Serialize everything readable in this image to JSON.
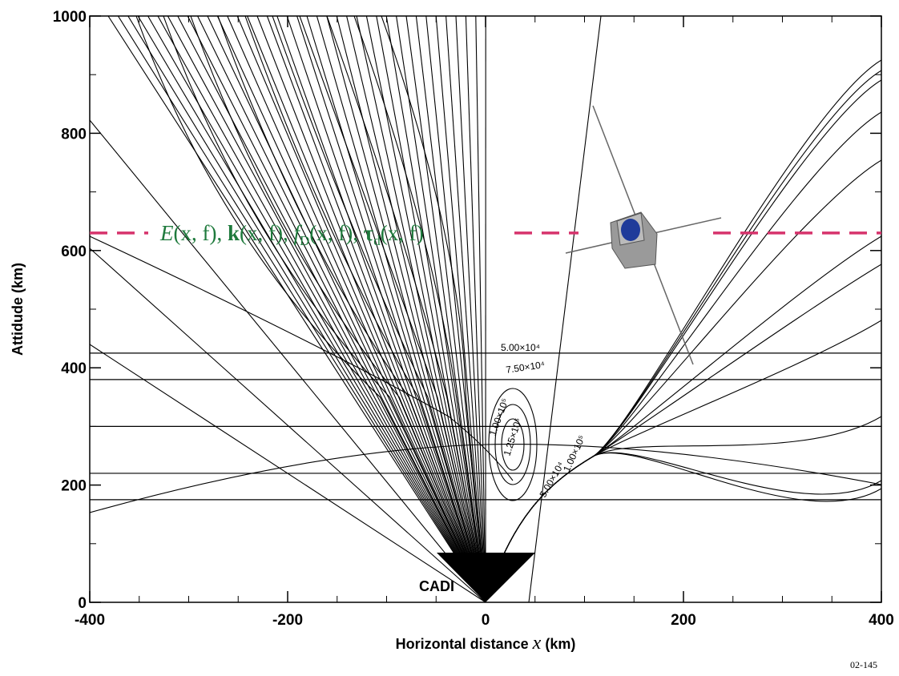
{
  "chart_data": {
    "type": "ray-trace",
    "y_label": "Attidude (km)",
    "x_label": [
      "Horizontal distance",
      "x",
      "(km)"
    ],
    "xlim": [
      -400,
      400
    ],
    "ylim": [
      0,
      1000
    ],
    "xticks": [
      -400,
      -200,
      0,
      200,
      400
    ],
    "yticks": [
      0,
      200,
      400,
      600,
      800,
      1000
    ],
    "xminorticks": [
      -350,
      -300,
      -250,
      -150,
      -100,
      -50,
      50,
      100,
      150,
      250,
      300,
      350
    ],
    "yminorticks": [
      100,
      300,
      500,
      700,
      900
    ],
    "transmitter_label": "CADI",
    "figure_id": "02-145",
    "satellite_altitude": 630,
    "annotation": [
      "E",
      "(x, f), ",
      "k",
      "(x, f), ",
      "f",
      "D",
      "(x, f), ",
      "τ",
      "d",
      "(x, f)"
    ],
    "contours": [
      {
        "value": 425,
        "label": "5.00×10⁴"
      },
      {
        "value": 380,
        "label": "7.50×10⁴"
      },
      {
        "value": 300,
        "label": "1.00×10⁵"
      },
      {
        "value": 220,
        "label": "1.25×10⁵"
      },
      {
        "value": 175,
        "label": "5.00×10⁴"
      }
    ],
    "cusp_label": "1.00×10⁵"
  }
}
